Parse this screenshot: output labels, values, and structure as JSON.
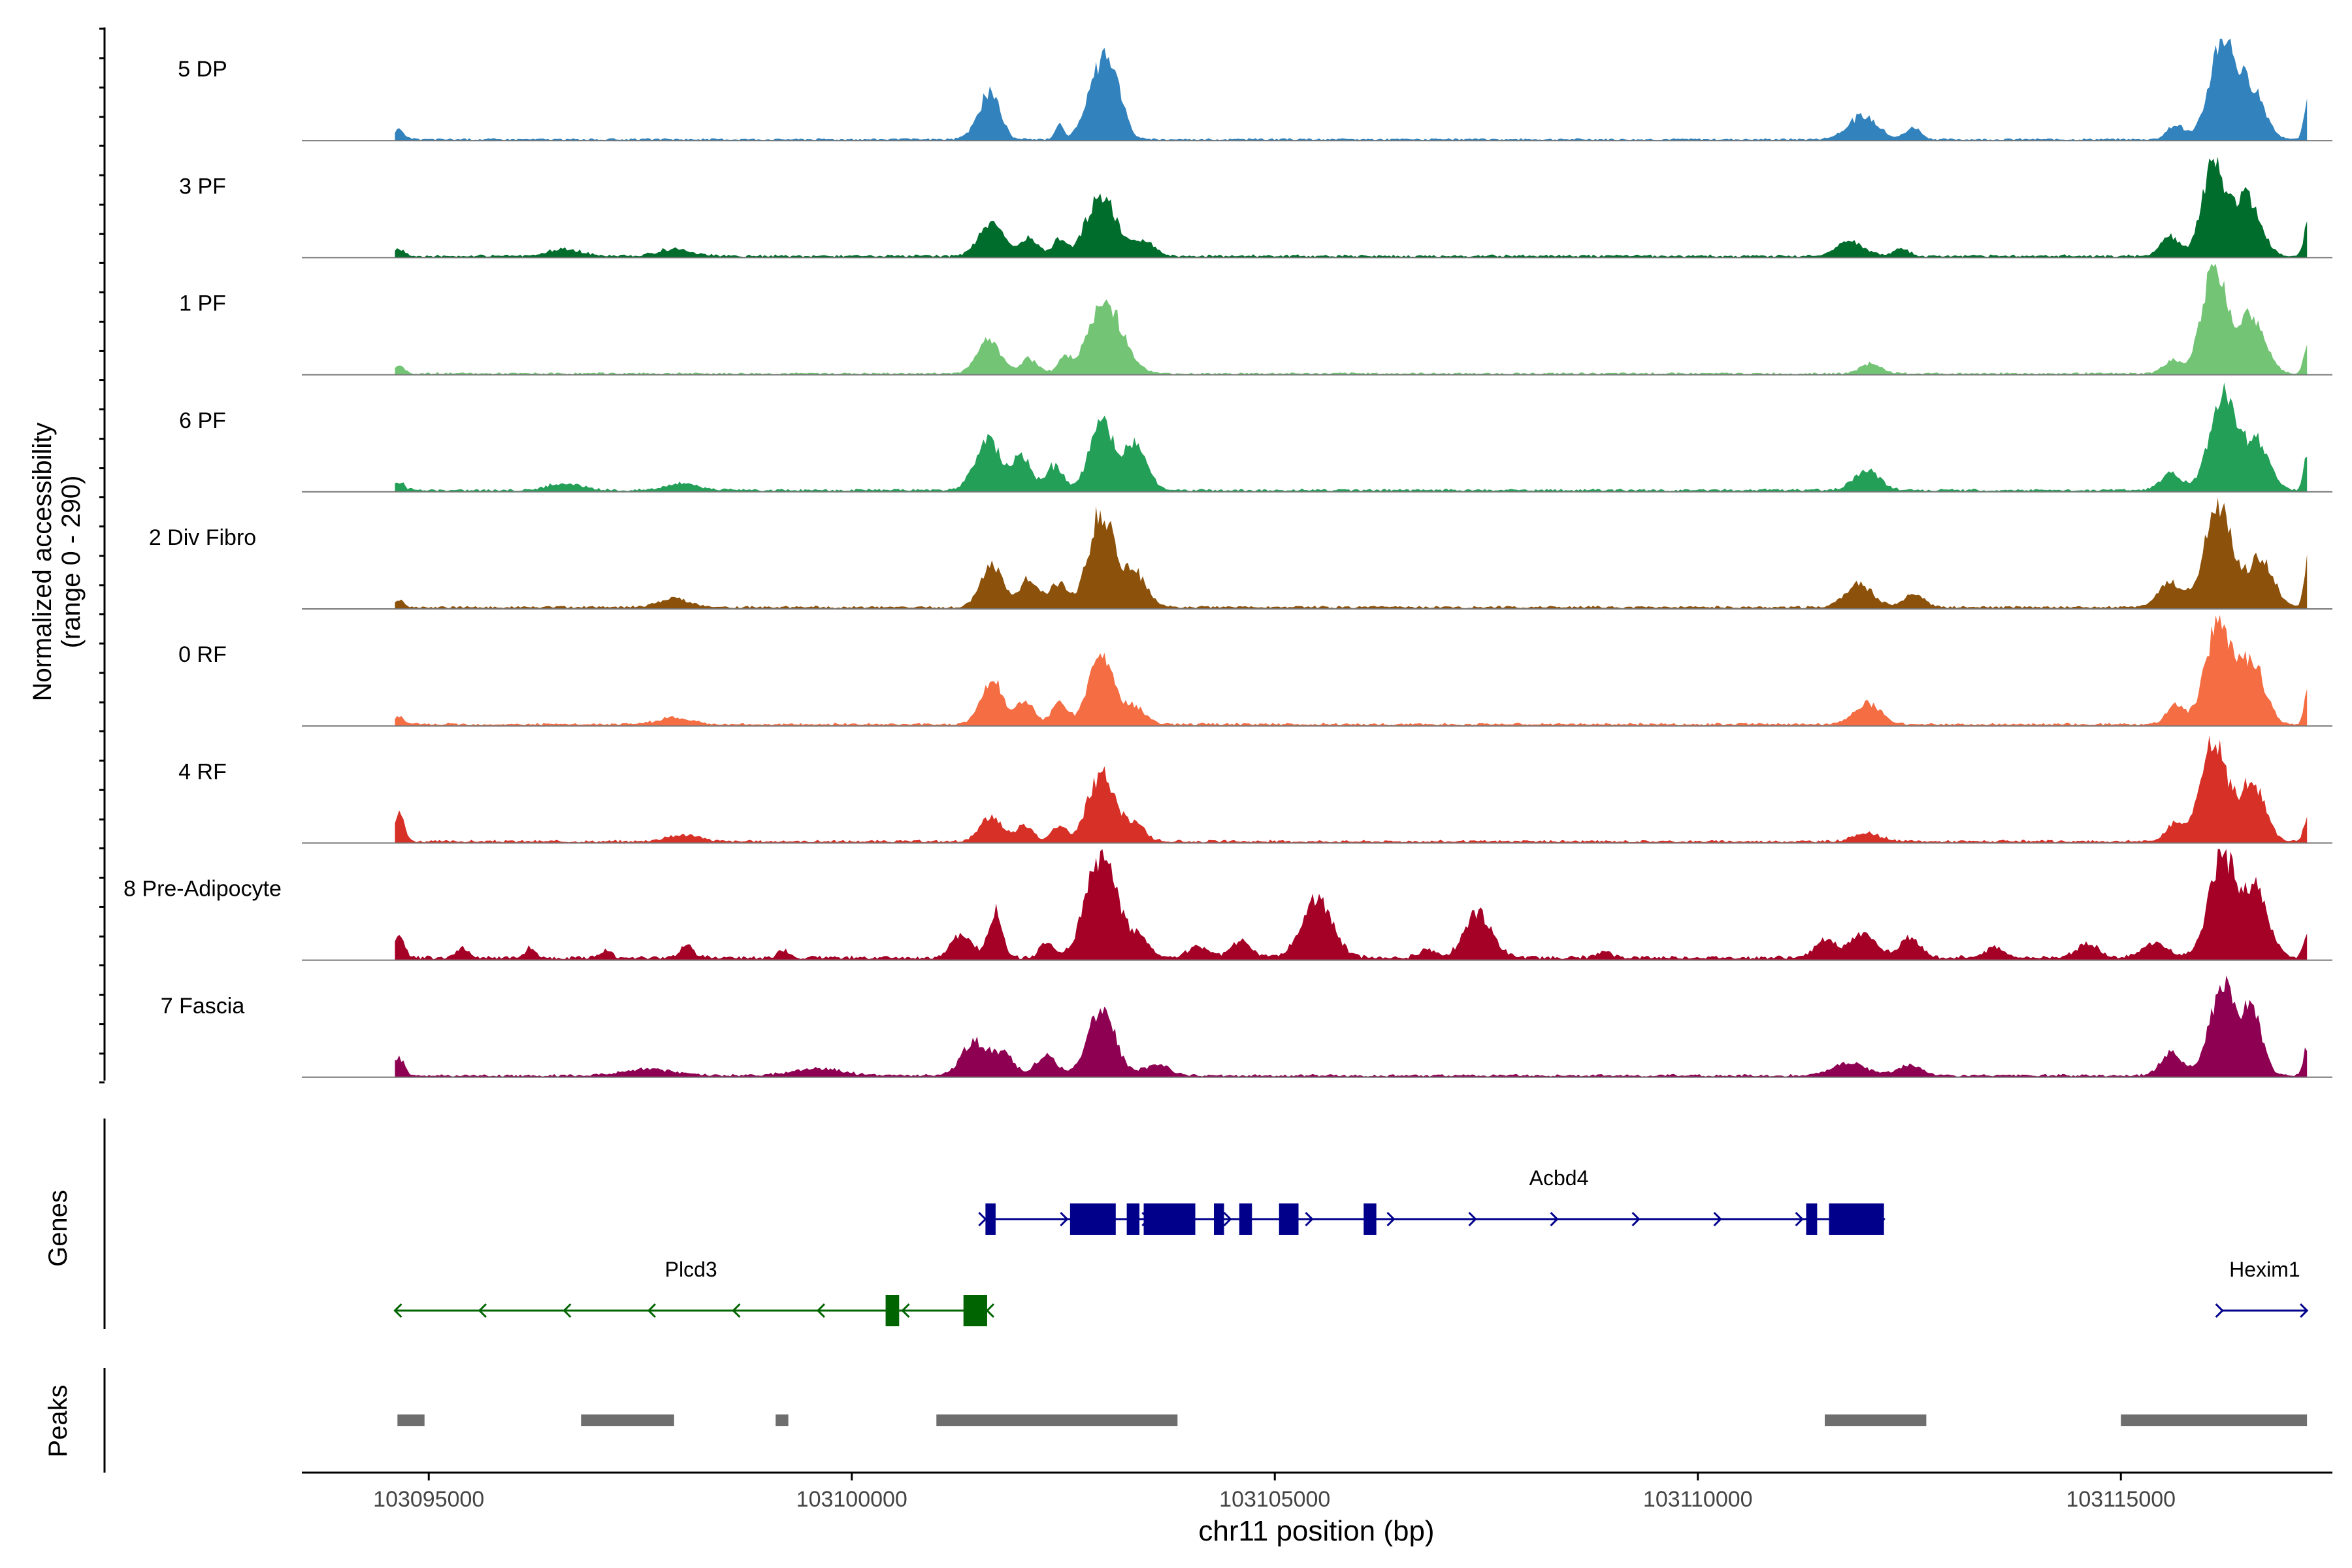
{
  "chart_data": {
    "type": "area",
    "chromosome": "chr11",
    "xlim": [
      103093500,
      103117500
    ],
    "region": [
      103094600,
      103117200
    ],
    "xlabel": "chr11 position (bp)",
    "x_ticks": [
      103095000,
      103100000,
      103105000,
      103110000,
      103115000
    ],
    "x_tick_labels": [
      "103095000",
      "103100000",
      "103105000",
      "103110000",
      "103115000"
    ],
    "ylabel_line1": "Normalized accessibility",
    "ylabel_line2": "(range 0 - 290)",
    "yrange": [
      0,
      290
    ],
    "baseline_color": "#777777",
    "tracks": [
      {
        "name": "5 DP",
        "color": "#3182bd",
        "bg": 1.5,
        "peaks": [
          [
            103094650,
            12,
            60
          ],
          [
            103101580,
            40,
            120
          ],
          [
            103101700,
            28,
            90
          ],
          [
            103102450,
            18,
            50
          ],
          [
            103102920,
            75,
            150
          ],
          [
            103103100,
            50,
            120
          ],
          [
            103111950,
            28,
            180
          ],
          [
            103112550,
            14,
            90
          ],
          [
            103115650,
            18,
            100
          ],
          [
            103116200,
            120,
            150
          ],
          [
            103116550,
            60,
            150
          ],
          [
            103117200,
            45,
            40
          ]
        ]
      },
      {
        "name": "3 PF",
        "color": "#006d2c",
        "bg": 2,
        "peaks": [
          [
            103094650,
            8,
            60
          ],
          [
            103096600,
            8,
            200
          ],
          [
            103097900,
            8,
            200
          ],
          [
            103101650,
            38,
            150
          ],
          [
            103102100,
            22,
            100
          ],
          [
            103102450,
            20,
            80
          ],
          [
            103102950,
            75,
            170
          ],
          [
            103103450,
            20,
            120
          ],
          [
            103111800,
            18,
            160
          ],
          [
            103112400,
            10,
            90
          ],
          [
            103115580,
            25,
            110
          ],
          [
            103116100,
            110,
            140
          ],
          [
            103116500,
            70,
            150
          ],
          [
            103117200,
            40,
            40
          ]
        ]
      },
      {
        "name": "1 PF",
        "color": "#74c476",
        "bg": 1.5,
        "peaks": [
          [
            103094650,
            10,
            60
          ],
          [
            103101620,
            40,
            140
          ],
          [
            103102100,
            18,
            100
          ],
          [
            103102500,
            16,
            80
          ],
          [
            103103000,
            85,
            200
          ],
          [
            103112050,
            12,
            120
          ],
          [
            103115600,
            16,
            100
          ],
          [
            103116100,
            125,
            150
          ],
          [
            103116550,
            70,
            150
          ],
          [
            103117200,
            35,
            40
          ]
        ]
      },
      {
        "name": "6 PF",
        "color": "#239f58",
        "bg": 2,
        "peaks": [
          [
            103094650,
            10,
            60
          ],
          [
            103096600,
            8,
            200
          ],
          [
            103098000,
            8,
            200
          ],
          [
            103101600,
            65,
            140
          ],
          [
            103102000,
            40,
            120
          ],
          [
            103102400,
            30,
            100
          ],
          [
            103102950,
            80,
            140
          ],
          [
            103103350,
            55,
            140
          ],
          [
            103112000,
            25,
            150
          ],
          [
            103115600,
            20,
            120
          ],
          [
            103116200,
            115,
            150
          ],
          [
            103116600,
            60,
            150
          ],
          [
            103117200,
            45,
            40
          ]
        ]
      },
      {
        "name": "2 Div Fibro",
        "color": "#8c510a",
        "bg": 2,
        "peaks": [
          [
            103094650,
            8,
            60
          ],
          [
            103097900,
            10,
            200
          ],
          [
            103101650,
            50,
            130
          ],
          [
            103102100,
            35,
            120
          ],
          [
            103102450,
            28,
            100
          ],
          [
            103102950,
            115,
            150
          ],
          [
            103103350,
            40,
            140
          ],
          [
            103111900,
            28,
            160
          ],
          [
            103112550,
            16,
            120
          ],
          [
            103115580,
            30,
            140
          ],
          [
            103116150,
            125,
            160
          ],
          [
            103116650,
            60,
            150
          ],
          [
            103117200,
            55,
            40
          ]
        ]
      },
      {
        "name": "0 RF",
        "color": "#f46d43",
        "bg": 2,
        "peaks": [
          [
            103094650,
            10,
            60
          ],
          [
            103097900,
            8,
            200
          ],
          [
            103101650,
            55,
            130
          ],
          [
            103102050,
            30,
            100
          ],
          [
            103102450,
            25,
            90
          ],
          [
            103102950,
            85,
            150
          ],
          [
            103103350,
            20,
            120
          ],
          [
            103112000,
            25,
            160
          ],
          [
            103115650,
            22,
            110
          ],
          [
            103116150,
            120,
            150
          ],
          [
            103116550,
            75,
            150
          ],
          [
            103117200,
            38,
            40
          ]
        ]
      },
      {
        "name": "4 RF",
        "color": "#d73027",
        "bg": 2,
        "peaks": [
          [
            103094650,
            35,
            60
          ],
          [
            103098000,
            8,
            200
          ],
          [
            103101650,
            30,
            130
          ],
          [
            103102050,
            20,
            100
          ],
          [
            103102450,
            18,
            90
          ],
          [
            103102950,
            80,
            160
          ],
          [
            103103350,
            20,
            120
          ],
          [
            103112000,
            10,
            160
          ],
          [
            103115650,
            22,
            110
          ],
          [
            103116100,
            120,
            150
          ],
          [
            103116550,
            70,
            150
          ],
          [
            103117200,
            30,
            40
          ]
        ]
      },
      {
        "name": "8 Pre-Adipocyte",
        "color": "#a50026",
        "bg": 3,
        "peaks": [
          [
            103094650,
            30,
            60
          ],
          [
            103095400,
            12,
            60
          ],
          [
            103096200,
            12,
            60
          ],
          [
            103097100,
            10,
            60
          ],
          [
            103098050,
            16,
            80
          ],
          [
            103099200,
            10,
            60
          ],
          [
            103101300,
            28,
            120
          ],
          [
            103101700,
            60,
            80
          ],
          [
            103102300,
            20,
            80
          ],
          [
            103102950,
            125,
            180
          ],
          [
            103103400,
            25,
            120
          ],
          [
            103104100,
            14,
            120
          ],
          [
            103104600,
            20,
            120
          ],
          [
            103105500,
            70,
            180
          ],
          [
            103106800,
            10,
            100
          ],
          [
            103107400,
            55,
            160
          ],
          [
            103108900,
            8,
            80
          ],
          [
            103111500,
            20,
            120
          ],
          [
            103111950,
            30,
            150
          ],
          [
            103112500,
            25,
            120
          ],
          [
            103113500,
            12,
            120
          ],
          [
            103114600,
            16,
            140
          ],
          [
            103115400,
            18,
            150
          ],
          [
            103116200,
            125,
            160
          ],
          [
            103116600,
            80,
            140
          ],
          [
            103117200,
            30,
            40
          ]
        ]
      },
      {
        "name": "7 Fascia",
        "color": "#8e0152",
        "bg": 2,
        "peaks": [
          [
            103094650,
            22,
            60
          ],
          [
            103097600,
            8,
            300
          ],
          [
            103099600,
            8,
            300
          ],
          [
            103101450,
            40,
            150
          ],
          [
            103101800,
            25,
            120
          ],
          [
            103102300,
            25,
            120
          ],
          [
            103102950,
            80,
            160
          ],
          [
            103103600,
            14,
            150
          ],
          [
            103111800,
            16,
            200
          ],
          [
            103112500,
            12,
            150
          ],
          [
            103115600,
            30,
            120
          ],
          [
            103116200,
            105,
            150
          ],
          [
            103116550,
            75,
            120
          ],
          [
            103117200,
            35,
            40
          ]
        ]
      }
    ],
    "genes_label": "Genes",
    "genes": [
      {
        "name": "Acbd4",
        "strand": "+",
        "color": "#00008b",
        "start": 103101580,
        "end": 103112200,
        "exons": [
          [
            103101580,
            103101700
          ],
          [
            103102580,
            103103120
          ],
          [
            103103250,
            103103400
          ],
          [
            103103450,
            103104060
          ],
          [
            103104280,
            103104400
          ],
          [
            103104580,
            103104730
          ],
          [
            103105050,
            103105280
          ],
          [
            103106050,
            103106200
          ],
          [
            103111280,
            103111410
          ],
          [
            103111550,
            103112200
          ]
        ]
      },
      {
        "name": "Plcd3",
        "strand": "-",
        "color": "#006400",
        "start": 103094600,
        "end": 103101600,
        "exons": [
          [
            103100400,
            103100560
          ],
          [
            103101320,
            103101600
          ]
        ]
      },
      {
        "name": "Hexim1",
        "strand": "+",
        "color": "#00008b",
        "start": 103116200,
        "end": 103117200,
        "exons": []
      }
    ],
    "peaks_label": "Peaks",
    "peak_color": "#6e6e6e",
    "peak_regions": [
      [
        103094630,
        103094950
      ],
      [
        103096800,
        103097900
      ],
      [
        103099100,
        103099250
      ],
      [
        103101000,
        103103850
      ],
      [
        103111500,
        103112700
      ],
      [
        103115000,
        103117200
      ]
    ]
  }
}
